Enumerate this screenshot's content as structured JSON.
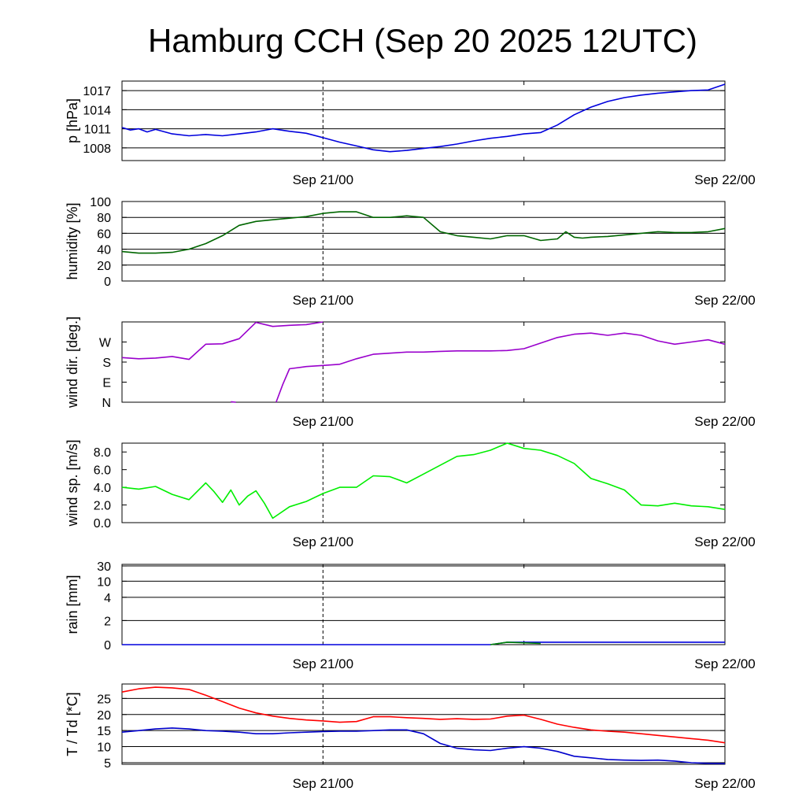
{
  "title": "Hamburg CCH (Sep 20 2025 12UTC)",
  "chart_data": [
    {
      "type": "line",
      "ylabel": "p [hPa]",
      "x_ticks": [
        "Sep 21/00",
        "Sep 22/00"
      ],
      "ylim": [
        1006,
        1018.5
      ],
      "yticks": [
        1008,
        1011,
        1014,
        1017
      ],
      "ytick_labels": [
        "1008",
        "1011",
        "1014",
        "1017"
      ],
      "grid": true,
      "series": [
        {
          "color": "#0000dd",
          "x": [
            0,
            0.5,
            1,
            1.5,
            2,
            3,
            4,
            5,
            6,
            7,
            8,
            9,
            10,
            11,
            12,
            13,
            14,
            15,
            16,
            17,
            18,
            19,
            20,
            21,
            22,
            23,
            24,
            25,
            26,
            27,
            28,
            29,
            30,
            31,
            32,
            33,
            34,
            35,
            36
          ],
          "y": [
            1011.2,
            1010.8,
            1011.0,
            1010.5,
            1010.9,
            1010.2,
            1009.9,
            1010.1,
            1009.9,
            1010.2,
            1010.5,
            1011.0,
            1010.6,
            1010.3,
            1009.6,
            1008.9,
            1008.3,
            1007.7,
            1007.4,
            1007.6,
            1007.9,
            1008.2,
            1008.6,
            1009.1,
            1009.5,
            1009.8,
            1010.2,
            1010.4,
            1011.6,
            1013.2,
            1014.4,
            1015.3,
            1015.9,
            1016.3,
            1016.6,
            1016.8,
            1017.0,
            1017.1,
            1018.0
          ]
        }
      ]
    },
    {
      "type": "line",
      "ylabel": "humidity [%]",
      "x_ticks": [
        "Sep 21/00",
        "Sep 22/00"
      ],
      "ylim": [
        0,
        100
      ],
      "yticks": [
        0,
        20,
        40,
        60,
        80,
        100
      ],
      "ytick_labels": [
        "0",
        "20",
        "40",
        "60",
        "80",
        "100"
      ],
      "grid": true,
      "series": [
        {
          "color": "#006600",
          "x": [
            0,
            1,
            2,
            3,
            4,
            5,
            6,
            7,
            8,
            9,
            10,
            11,
            12,
            13,
            14,
            15,
            16,
            17,
            18,
            19,
            20,
            21,
            22,
            23,
            24,
            25,
            26,
            26.5,
            27,
            27.5,
            28,
            29,
            30,
            31,
            32,
            33,
            34,
            35,
            36
          ],
          "y": [
            37,
            35,
            35,
            36,
            40,
            47,
            57,
            70,
            75,
            77,
            79,
            81,
            85,
            87,
            87,
            80,
            80,
            82,
            80,
            62,
            57,
            55,
            53,
            57,
            57,
            51,
            53,
            62,
            55,
            54,
            55,
            56,
            58,
            60,
            62,
            61,
            61,
            62,
            66
          ]
        }
      ]
    },
    {
      "type": "line",
      "ylabel": "wind dir. [deg.]",
      "x_ticks": [
        "Sep 21/00",
        "Sep 22/00"
      ],
      "ylim": [
        0,
        360
      ],
      "yticks": [
        0,
        90,
        180,
        270
      ],
      "ytick_labels": [
        "N",
        "E",
        "S",
        "W"
      ],
      "grid": false,
      "segments": [
        {
          "x": [
            0,
            1,
            2,
            3,
            4,
            5,
            6,
            7,
            8,
            9,
            10,
            11,
            12
          ],
          "y": [
            200,
            195,
            198,
            205,
            192,
            260,
            262,
            285,
            358,
            340,
            345,
            348,
            360
          ]
        },
        {
          "x": [
            6.5,
            6.8
          ],
          "y": [
            2,
            0
          ]
        },
        {
          "x": [
            9.2,
            9.6,
            10,
            11,
            12,
            13,
            14,
            15,
            16,
            17,
            18,
            19,
            20,
            21,
            22,
            23,
            24,
            25,
            26,
            27,
            28,
            29,
            30,
            31,
            32,
            33,
            34,
            35,
            36
          ],
          "y": [
            0,
            80,
            150,
            160,
            165,
            170,
            195,
            215,
            220,
            225,
            225,
            228,
            230,
            230,
            230,
            232,
            240,
            265,
            290,
            305,
            310,
            300,
            310,
            300,
            275,
            260,
            270,
            280,
            260
          ]
        }
      ],
      "series": [
        {
          "color": "#9900cc"
        }
      ]
    },
    {
      "type": "line",
      "ylabel": "wind sp. [m/s]",
      "x_ticks": [
        "Sep 21/00",
        "Sep 22/00"
      ],
      "ylim": [
        0,
        9
      ],
      "yticks": [
        0,
        2,
        4,
        6,
        8
      ],
      "ytick_labels": [
        "0.0",
        "2.0",
        "4.0",
        "6.0",
        "8.0"
      ],
      "grid": false,
      "series": [
        {
          "color": "#00ee00",
          "x": [
            0,
            1,
            2,
            3,
            4,
            5,
            5.5,
            6,
            6.5,
            7,
            7.5,
            8,
            8.5,
            9,
            10,
            11,
            12,
            13,
            14,
            15,
            16,
            17,
            18,
            19,
            20,
            21,
            22,
            23,
            24,
            25,
            26,
            27,
            28,
            29,
            30,
            31,
            32,
            33,
            34,
            35,
            36
          ],
          "y": [
            4.0,
            3.8,
            4.1,
            3.2,
            2.6,
            4.5,
            3.5,
            2.3,
            3.7,
            2.0,
            3.0,
            3.6,
            2.2,
            0.5,
            1.8,
            2.4,
            3.3,
            4.0,
            4.0,
            5.3,
            5.2,
            4.5,
            5.5,
            6.5,
            7.5,
            7.7,
            8.2,
            9.0,
            8.4,
            8.2,
            7.6,
            6.7,
            5.0,
            4.4,
            3.7,
            2.0,
            1.9,
            2.2,
            1.9,
            1.8,
            1.5
          ]
        }
      ]
    },
    {
      "type": "line",
      "ylabel": "rain [mm]",
      "x_ticks": [
        "Sep 21/00",
        "Sep 22/00"
      ],
      "ylim": [
        0,
        30
      ],
      "yticks": [
        0,
        2,
        4,
        10,
        30
      ],
      "ytick_labels": [
        "0",
        "2",
        "4",
        "10",
        "30"
      ],
      "grid": true,
      "series": [
        {
          "color": "#0000dd",
          "x": [
            0,
            22,
            23,
            36
          ],
          "y": [
            0,
            0,
            0.2,
            0.2
          ]
        },
        {
          "color": "#008800",
          "x": [
            22,
            23,
            25
          ],
          "y": [
            0,
            0.2,
            0.1
          ]
        }
      ]
    },
    {
      "type": "line",
      "ylabel": "T / Td [*C]",
      "x_ticks": [
        "Sep 21/00",
        "Sep 22/00"
      ],
      "ylim": [
        4.5,
        29.5
      ],
      "yticks": [
        5,
        10,
        15,
        20,
        25
      ],
      "ytick_labels": [
        "5",
        "10",
        "15",
        "20",
        "25"
      ],
      "grid": true,
      "series": [
        {
          "color": "#ff0000",
          "x": [
            0,
            1,
            2,
            3,
            4,
            5,
            6,
            7,
            8,
            9,
            10,
            11,
            12,
            13,
            14,
            15,
            16,
            17,
            18,
            19,
            20,
            21,
            22,
            23,
            24,
            25,
            26,
            27,
            28,
            29,
            30,
            31,
            32,
            33,
            34,
            35,
            36
          ],
          "y": [
            27,
            28,
            28.5,
            28.3,
            27.8,
            26,
            24,
            22,
            20.5,
            19.5,
            18.8,
            18.3,
            18,
            17.6,
            17.8,
            19.3,
            19.3,
            19.0,
            18.8,
            18.5,
            18.7,
            18.5,
            18.6,
            19.5,
            19.8,
            18.5,
            17,
            16,
            15.2,
            14.8,
            14.5,
            14,
            13.5,
            13,
            12.5,
            12,
            11.2
          ]
        },
        {
          "color": "#0000cc",
          "x": [
            0,
            1,
            2,
            3,
            4,
            5,
            6,
            7,
            8,
            9,
            10,
            11,
            12,
            13,
            14,
            15,
            16,
            17,
            18,
            19,
            20,
            21,
            22,
            23,
            24,
            25,
            26,
            27,
            28,
            29,
            30,
            31,
            32,
            33,
            34,
            35,
            36
          ],
          "y": [
            14.5,
            15,
            15.5,
            15.8,
            15.5,
            15,
            14.8,
            14.5,
            14,
            14,
            14.3,
            14.5,
            14.7,
            14.8,
            14.8,
            15,
            15.2,
            15.2,
            14,
            11,
            9.5,
            9,
            8.8,
            9.5,
            10,
            9.5,
            8.5,
            7,
            6.5,
            6,
            5.8,
            5.7,
            5.8,
            5.5,
            5.0,
            4.8,
            4.7
          ]
        }
      ]
    }
  ]
}
